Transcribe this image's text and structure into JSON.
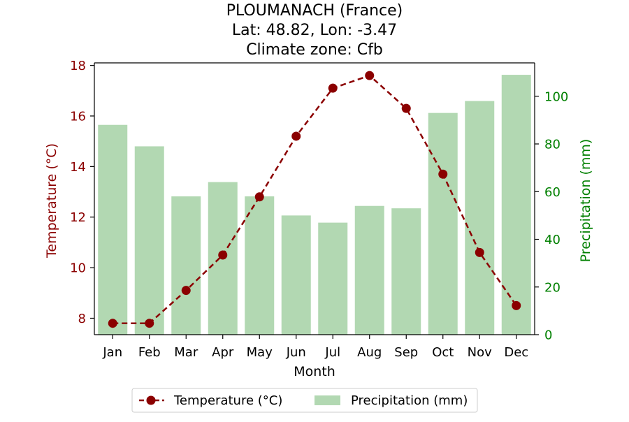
{
  "chart_data": {
    "type": "bar+line",
    "title_lines": [
      "PLOUMANACH (France)",
      "Lat: 48.82, Lon: -3.47",
      "Climate zone: Cfb"
    ],
    "xlabel": "Month",
    "ylabel_left": "Temperature (°C)",
    "ylabel_right": "Precipitation (mm)",
    "categories": [
      "Jan",
      "Feb",
      "Mar",
      "Apr",
      "May",
      "Jun",
      "Jul",
      "Aug",
      "Sep",
      "Oct",
      "Nov",
      "Dec"
    ],
    "temperature": {
      "name": "Temperature (°C)",
      "values": [
        7.8,
        7.8,
        9.1,
        10.5,
        12.8,
        15.2,
        17.1,
        17.6,
        16.3,
        13.7,
        10.6,
        8.5
      ],
      "color": "#8b0000"
    },
    "precipitation": {
      "name": "Precipitation (mm)",
      "values": [
        88,
        79,
        58,
        64,
        58,
        50,
        47,
        54,
        53,
        93,
        98,
        109
      ],
      "color": "#b2d8b2"
    },
    "ylim_left": [
      7.35,
      18.1
    ],
    "yticks_left": [
      8,
      10,
      12,
      14,
      16,
      18
    ],
    "ylim_right": [
      0,
      114
    ],
    "yticks_right": [
      0,
      20,
      40,
      60,
      80,
      100
    ],
    "left_axis_color": "#8b0000",
    "right_axis_color": "#008000",
    "legend_placement": "bottom-center",
    "grid": false
  }
}
